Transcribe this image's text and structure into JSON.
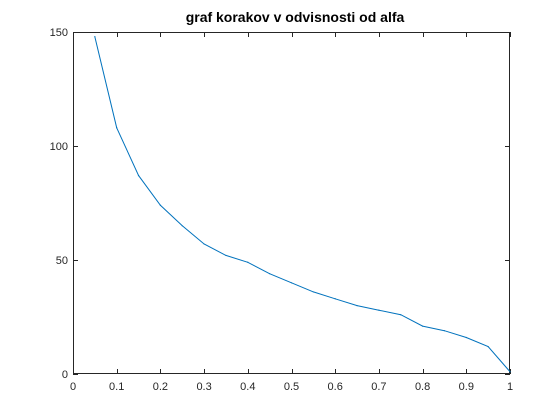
{
  "chart_data": {
    "type": "line",
    "title": "graf korakov v odvisnosti od alfa",
    "xlabel": "",
    "ylabel": "",
    "xlim": [
      0,
      1
    ],
    "ylim": [
      0,
      150
    ],
    "x_ticks": [
      0,
      0.1,
      0.2,
      0.3,
      0.4,
      0.5,
      0.6,
      0.7,
      0.8,
      0.9,
      1
    ],
    "x_tick_labels": [
      "0",
      "0.1",
      "0.2",
      "0.3",
      "0.4",
      "0.5",
      "0.6",
      "0.7",
      "0.8",
      "0.9",
      "1"
    ],
    "y_ticks": [
      0,
      50,
      100,
      150
    ],
    "y_tick_labels": [
      "0",
      "50",
      "100",
      "150"
    ],
    "grid": false,
    "line_color": "#0072BD",
    "axis_color": "#262626",
    "series": [
      {
        "x": [
          0.05,
          0.1,
          0.15,
          0.2,
          0.25,
          0.3,
          0.35,
          0.4,
          0.45,
          0.5,
          0.55,
          0.6,
          0.65,
          0.7,
          0.75,
          0.8,
          0.85,
          0.9,
          0.95,
          1.0
        ],
        "values": [
          148,
          108,
          87,
          74,
          65,
          57,
          52,
          49,
          44,
          40,
          36,
          33,
          30,
          28,
          26,
          21,
          19,
          16,
          12,
          1
        ]
      }
    ]
  }
}
